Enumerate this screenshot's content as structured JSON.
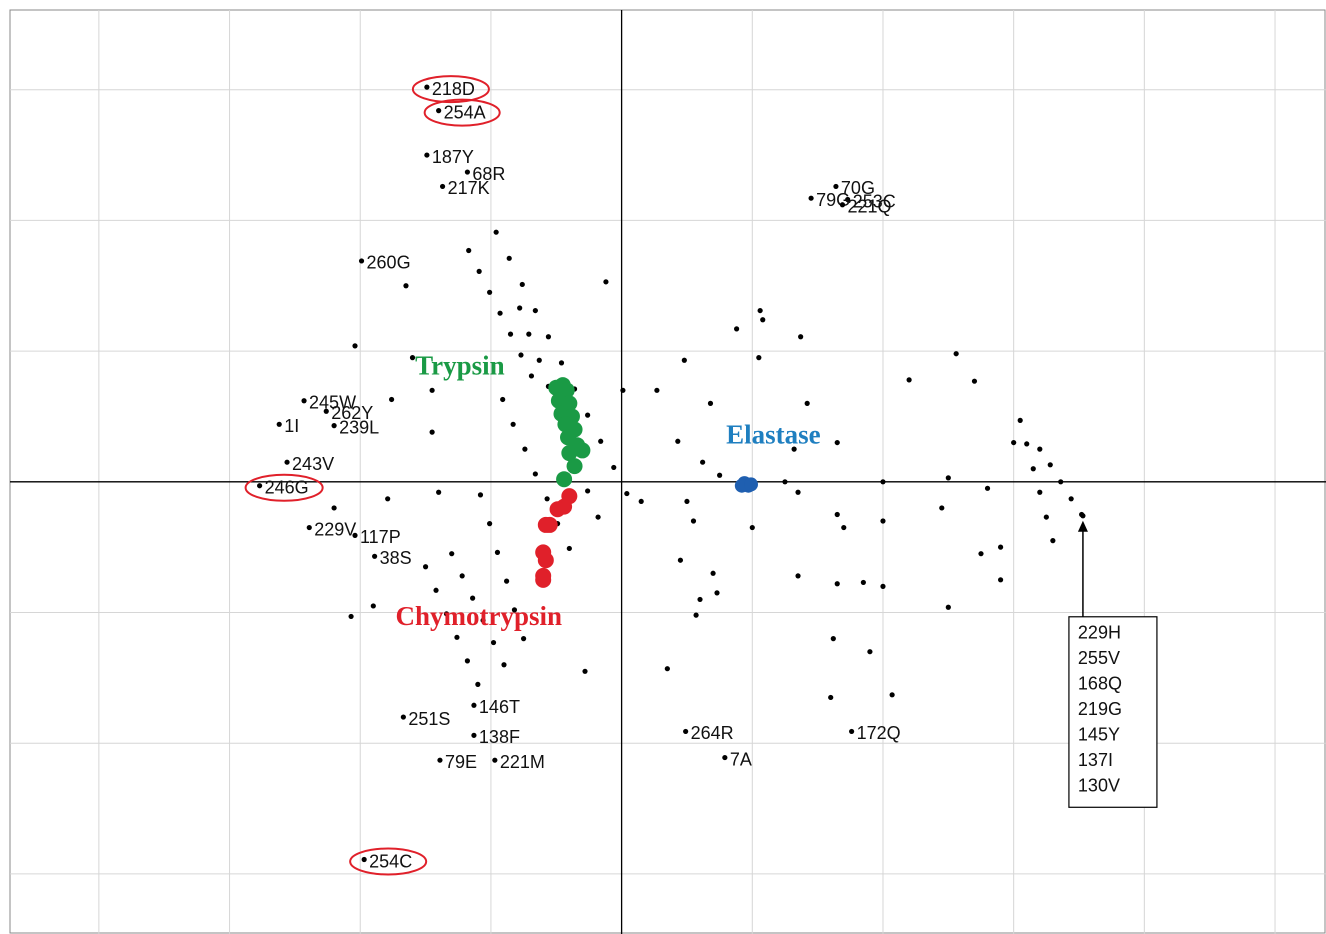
{
  "chart_data": {
    "type": "scatter",
    "xlim": [
      -4.68,
      5.39
    ],
    "ylim": [
      -3.46,
      3.61
    ],
    "xticks": [
      -4,
      -3,
      -2,
      -1,
      0,
      1,
      2,
      3,
      4,
      5
    ],
    "yticks": [
      -3,
      -2,
      -1,
      0,
      1,
      2,
      3
    ],
    "grid": true,
    "labeled": {
      "color": "#000000",
      "labels": [
        "218D",
        "254A",
        "187Y",
        "68R",
        "217K",
        "260G",
        "70G",
        "253C",
        "79G",
        "221Q",
        "245W",
        "262Y",
        "1I",
        "239L",
        "243V",
        "246G",
        "229V",
        "117P",
        "38S",
        "251S",
        "146T",
        "138F",
        "79E",
        "221M",
        "264R",
        "7A",
        "172Q",
        "254C"
      ],
      "x": [
        -1.49,
        -1.4,
        -1.49,
        -1.18,
        -1.37,
        -1.99,
        1.64,
        1.73,
        1.45,
        1.69,
        -2.43,
        -2.26,
        -2.62,
        -2.2,
        -2.56,
        -2.77,
        -2.39,
        -2.04,
        -1.89,
        -1.67,
        -1.13,
        -1.13,
        -1.39,
        -0.97,
        0.49,
        0.79,
        1.76,
        -1.97
      ],
      "y": [
        3.02,
        2.84,
        2.5,
        2.37,
        2.26,
        1.69,
        2.26,
        2.16,
        2.17,
        2.12,
        0.62,
        0.54,
        0.44,
        0.43,
        0.15,
        -0.03,
        -0.35,
        -0.41,
        -0.57,
        -1.8,
        -1.71,
        -1.94,
        -2.13,
        -2.13,
        -1.91,
        -2.11,
        -1.91,
        -2.89
      ],
      "circled": [
        true,
        true,
        false,
        false,
        false,
        false,
        false,
        false,
        false,
        false,
        false,
        false,
        false,
        false,
        false,
        true,
        false,
        false,
        false,
        false,
        false,
        false,
        false,
        false,
        false,
        false,
        false,
        true
      ],
      "circle_color": "#e0202a"
    },
    "series": [
      {
        "color": "#000000",
        "size": 2.6,
        "x": [
          -0.96,
          -0.86,
          -0.76,
          -0.66,
          -0.56,
          -0.46,
          -0.36,
          -0.26,
          -0.16,
          -0.06,
          0.04,
          -0.78,
          -0.71,
          -0.63,
          -0.56,
          -0.48,
          -0.41,
          -0.33,
          -0.26,
          -0.18,
          -1.17,
          -1.09,
          -1.01,
          -0.93,
          -0.85,
          -0.77,
          -0.69,
          -0.91,
          -0.83,
          -0.74,
          -0.66,
          -0.57,
          -0.49,
          -0.4,
          -1.5,
          -1.42,
          -1.34,
          -1.26,
          -1.18,
          -1.1,
          -1.3,
          -1.22,
          -1.14,
          -1.06,
          -0.98,
          -0.9,
          -1.08,
          -1.01,
          -0.95,
          -0.88,
          -0.82,
          -0.75,
          3.05,
          3.1,
          3.15,
          3.2,
          3.25,
          3.3,
          3.2,
          3.28,
          3.36,
          3.44,
          3.52,
          2.56,
          2.7,
          1.32,
          0.43,
          0.27,
          0.48,
          1.08,
          1.06,
          1.37,
          0.88,
          0.01,
          -0.12,
          1.05,
          2.2,
          1.42,
          0.68,
          0.62,
          0.75,
          1.25,
          1.35,
          2.0,
          2.5,
          2.8,
          0.5,
          0.55,
          0.15,
          1.65,
          1.7,
          2.0,
          2.45,
          2.9,
          2.75,
          0.7,
          0.73,
          1.35,
          1.65,
          1.85,
          0.6,
          2.5,
          2.0,
          1.62,
          1.9,
          1.6,
          2.07,
          0.35,
          0.57,
          2.9,
          1.0,
          -0.28,
          1.65,
          3.0,
          -1.65,
          -2.04,
          -1.6,
          -2.07,
          -1.9,
          -1.76,
          -1.45,
          -1.4,
          -2.2,
          -1.79,
          -1.45,
          0.45
        ],
        "y": [
          1.91,
          1.71,
          1.51,
          1.31,
          1.11,
          0.91,
          0.71,
          0.51,
          0.31,
          0.11,
          -0.09,
          1.33,
          1.13,
          0.93,
          0.73,
          0.53,
          0.33,
          0.13,
          -0.07,
          -0.27,
          1.77,
          1.61,
          1.45,
          1.29,
          1.13,
          0.97,
          0.81,
          0.63,
          0.44,
          0.25,
          0.06,
          -0.13,
          -0.32,
          -0.51,
          -0.65,
          -0.83,
          -1.01,
          -1.19,
          -1.37,
          -1.55,
          -0.55,
          -0.72,
          -0.89,
          -1.06,
          -1.23,
          -1.4,
          -0.1,
          -0.32,
          -0.54,
          -0.76,
          -0.98,
          -1.2,
          0.47,
          0.29,
          0.1,
          -0.08,
          -0.27,
          -0.45,
          0.25,
          0.13,
          0.0,
          -0.13,
          -0.25,
          0.98,
          0.77,
          0.25,
          0.31,
          0.7,
          0.93,
          1.24,
          1.31,
          1.11,
          1.17,
          0.7,
          1.53,
          0.95,
          0.78,
          0.6,
          0.6,
          0.15,
          0.05,
          0.0,
          -0.08,
          0.0,
          0.03,
          -0.05,
          -0.15,
          -0.3,
          -0.15,
          -0.25,
          -0.35,
          -0.3,
          -0.2,
          -0.5,
          -0.55,
          -0.7,
          -0.85,
          -0.72,
          -0.78,
          -0.77,
          -0.9,
          -0.96,
          -0.8,
          -1.2,
          -1.3,
          -1.65,
          -1.63,
          -1.43,
          -1.02,
          -0.75,
          -0.35,
          -1.45,
          0.3,
          0.3,
          1.5,
          1.04,
          0.95,
          -1.03,
          -0.95,
          0.63,
          0.38,
          -0.08,
          -0.2,
          -0.13,
          0.7,
          -0.6
        ]
      },
      {
        "color": "#1a9a45",
        "size": 8,
        "x": [
          -0.5,
          -0.45,
          -0.42,
          -0.48,
          -0.4,
          -0.46,
          -0.38,
          -0.43,
          -0.36,
          -0.41,
          -0.34,
          -0.4,
          -0.3,
          -0.36,
          -0.44
        ],
        "y": [
          0.72,
          0.74,
          0.7,
          0.62,
          0.6,
          0.52,
          0.5,
          0.44,
          0.4,
          0.34,
          0.28,
          0.22,
          0.24,
          0.12,
          0.02
        ]
      },
      {
        "color": "#e0202a",
        "size": 8,
        "x": [
          -0.4,
          -0.44,
          -0.49,
          -0.58,
          -0.55,
          -0.6,
          -0.58,
          -0.6,
          -0.6
        ],
        "y": [
          -0.11,
          -0.19,
          -0.21,
          -0.33,
          -0.33,
          -0.54,
          -0.6,
          -0.72,
          -0.75
        ]
      },
      {
        "color": "#1f5fb0",
        "size": 7,
        "x": [
          0.94,
          0.97,
          0.92,
          0.99
        ],
        "y": [
          -0.01,
          -0.03,
          -0.03,
          -0.02
        ]
      }
    ],
    "annotations": [
      {
        "text": "Trypsin",
        "x": -1.58,
        "y": 0.87,
        "color": "#1a9a45"
      },
      {
        "text": "Elastase",
        "x": 0.8,
        "y": 0.34,
        "color": "#1f7fc0"
      },
      {
        "text": "Chymotrypsin",
        "x": -1.73,
        "y": -1.05,
        "color": "#e0202a"
      }
    ],
    "callout": {
      "x": 3.53,
      "y": -0.26,
      "labels": [
        "229H",
        "255V",
        "168Q",
        "219G",
        "145Y",
        "137I",
        "130V"
      ]
    }
  }
}
